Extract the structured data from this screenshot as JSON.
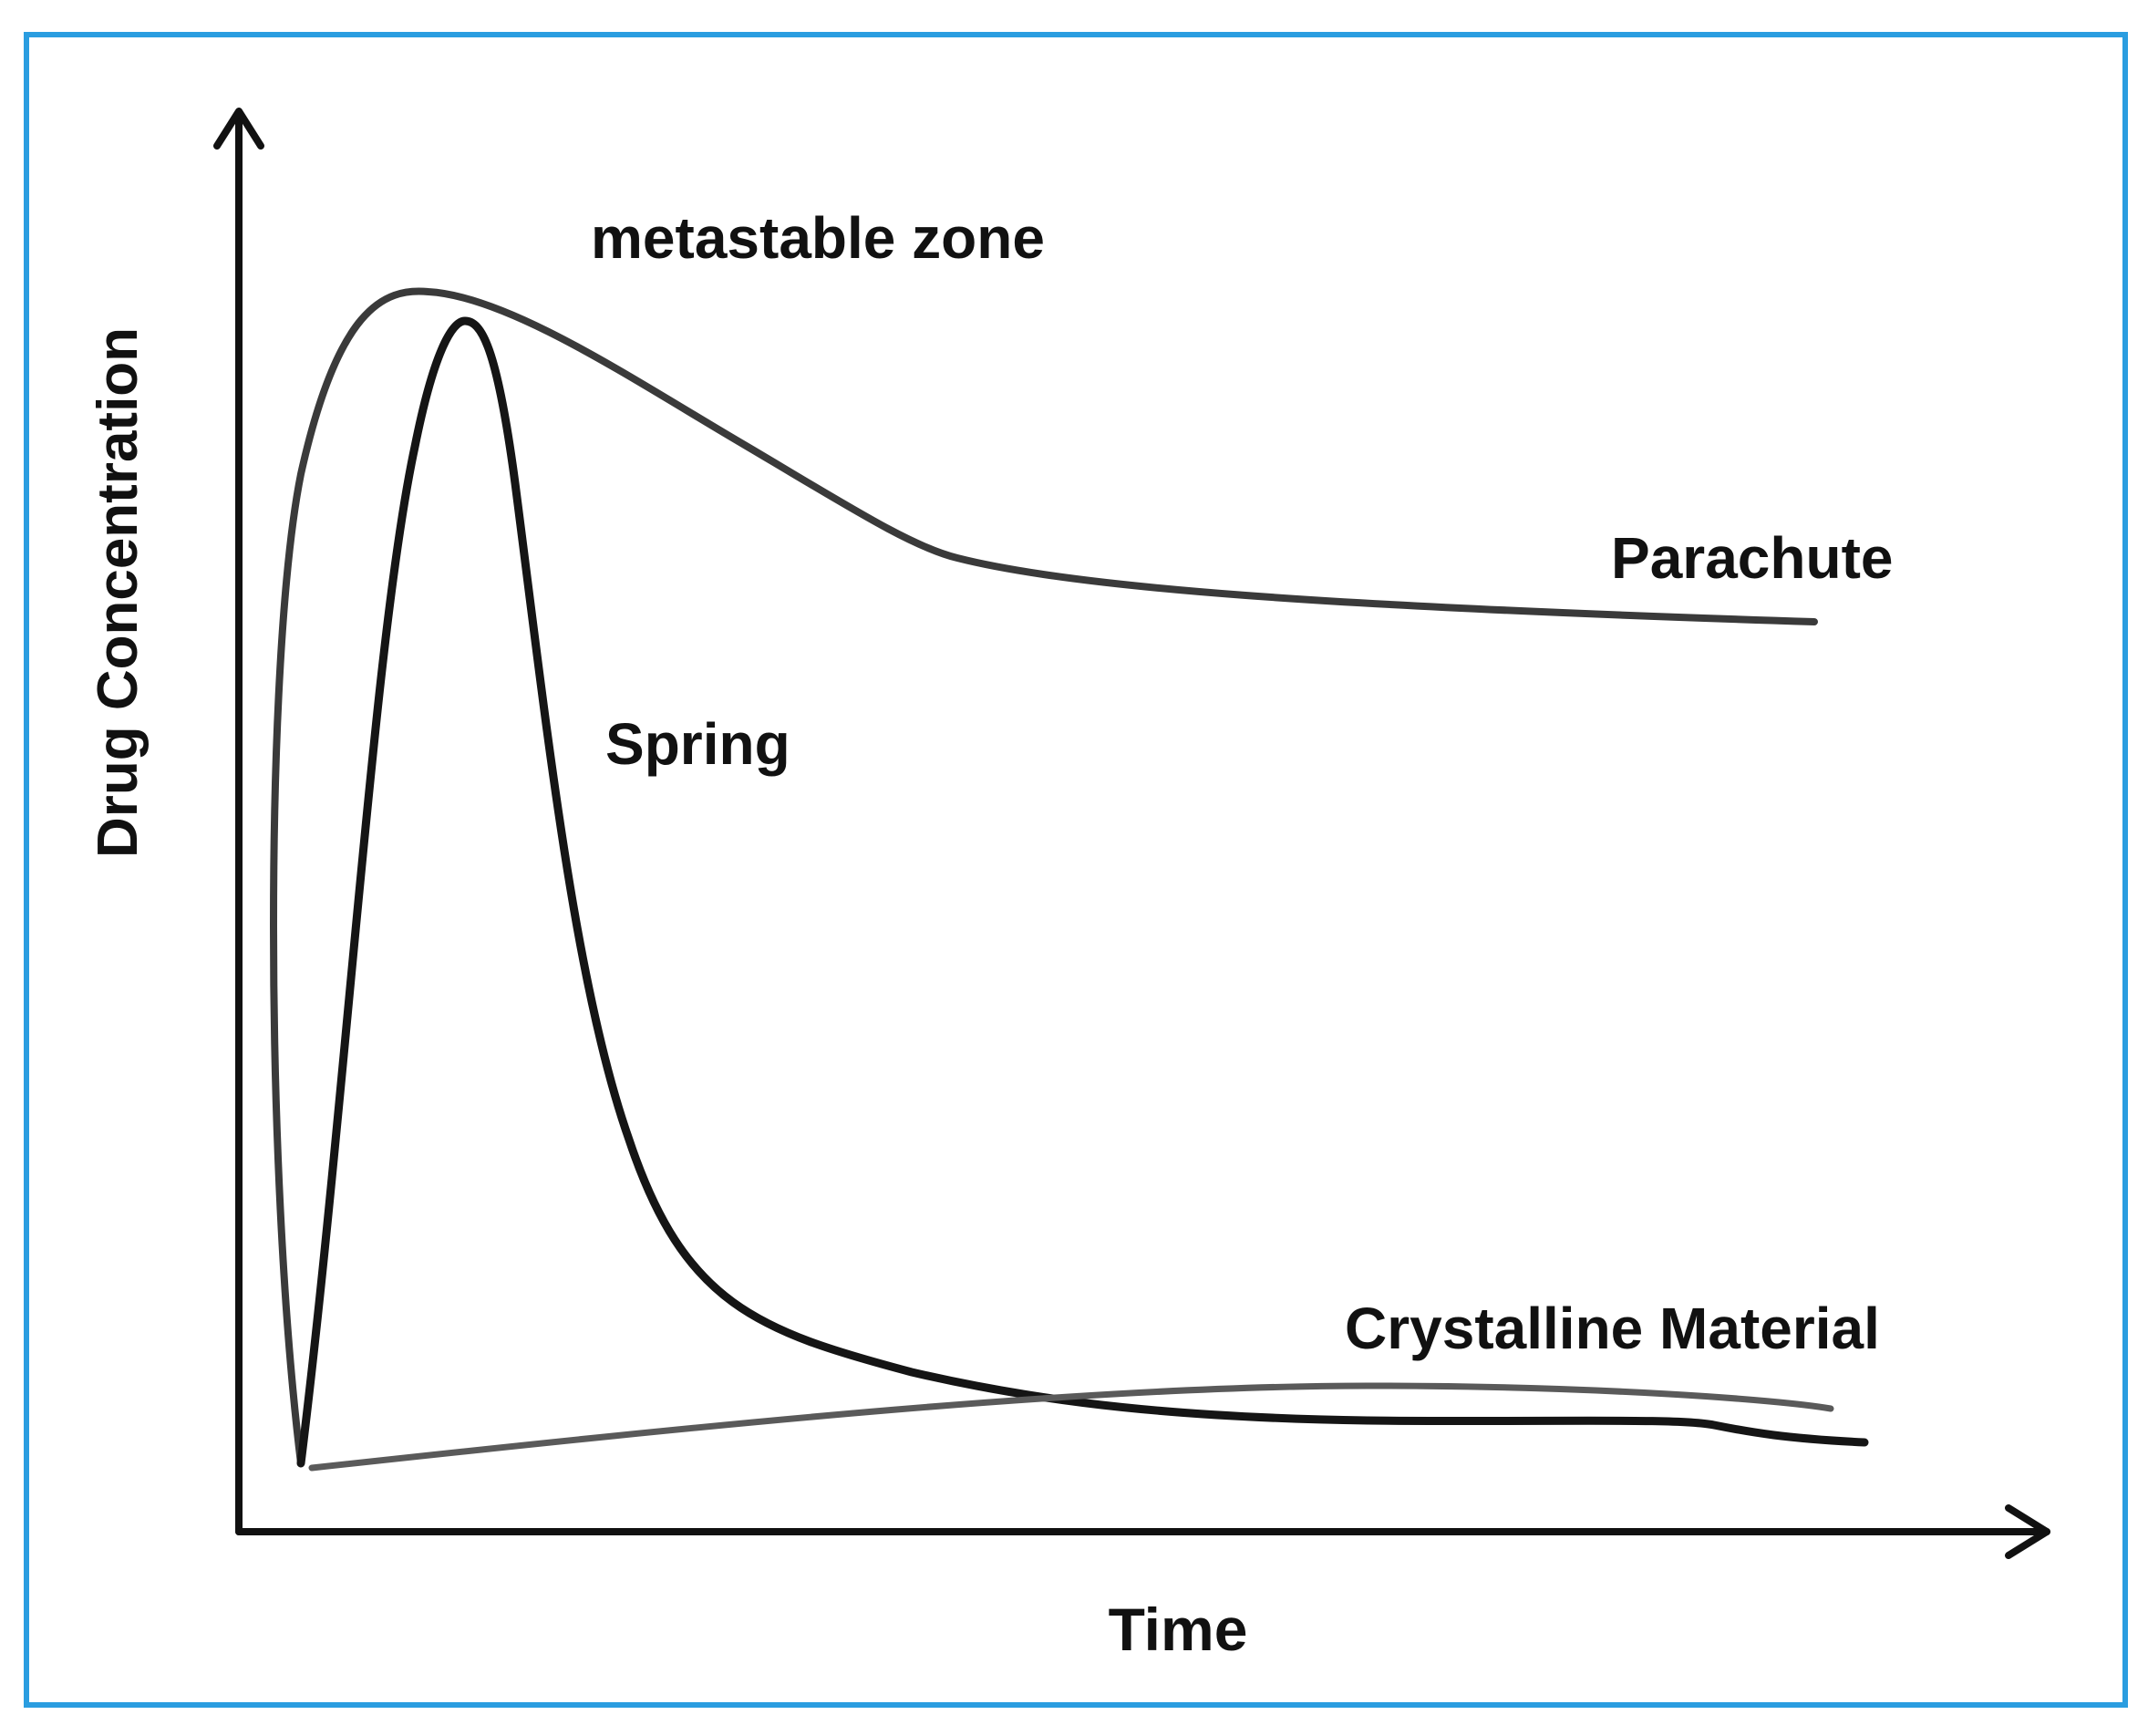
{
  "axes": {
    "x_label": "Time",
    "y_label": "Drug Concentration"
  },
  "curves": [
    {
      "id": "parachute",
      "label": "Parachute"
    },
    {
      "id": "spring",
      "label": "Spring"
    },
    {
      "id": "crystalline",
      "label": "Crystalline Material"
    }
  ],
  "annotations": {
    "metastable_zone": "metastable zone"
  }
}
